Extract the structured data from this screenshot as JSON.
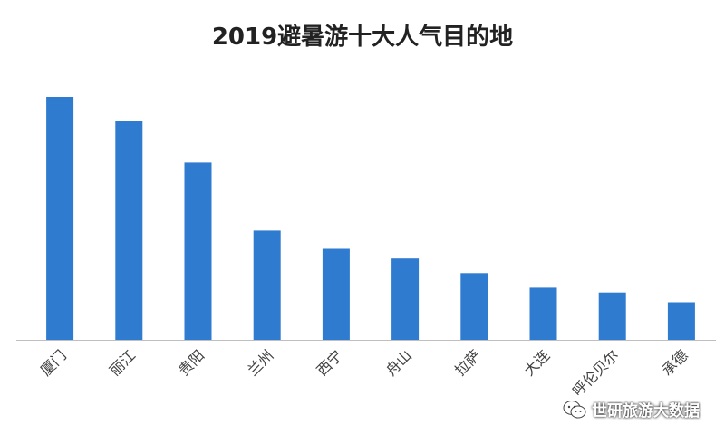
{
  "chart_data": {
    "type": "bar",
    "title": "2019避暑游十大人气目的地",
    "xlabel": "",
    "ylabel": "",
    "categories": [
      "厦门",
      "丽江",
      "贵阳",
      "兰州",
      "西宁",
      "舟山",
      "拉萨",
      "大连",
      "呼伦贝尔",
      "承德"
    ],
    "values": [
      100,
      90,
      73,
      45,
      37.5,
      33.5,
      27.5,
      21.5,
      19.5,
      15.5
    ],
    "ylim": [
      0,
      100
    ],
    "grid": false,
    "legend": "none",
    "bar_color": "#2e7bcf",
    "axis_color": "#bfbfbf",
    "label_color": "#404040"
  },
  "watermark": {
    "text": "世研旅游大数据",
    "icon": "wechat-icon"
  }
}
